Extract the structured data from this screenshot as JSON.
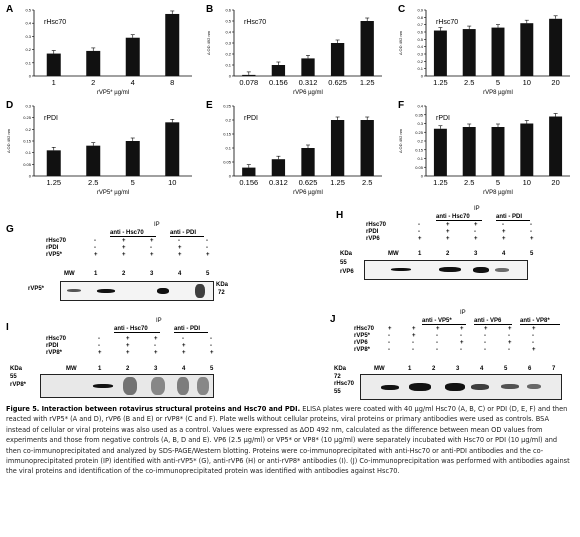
{
  "charts": [
    {
      "letter": "A",
      "title": "rHsc70",
      "categories": [
        "1",
        "2",
        "4",
        "8"
      ],
      "values": [
        0.17,
        0.19,
        0.29,
        0.47
      ],
      "ylim": [
        0,
        0.5
      ],
      "yticks": [
        0,
        0.1,
        0.2,
        0.3,
        0.4,
        0.5
      ],
      "xlabel": "rVP5* µg/ml",
      "ylabel": "",
      "bar": "#111111"
    },
    {
      "letter": "B",
      "title": "rHsc70",
      "categories": [
        "0.078",
        "0.156",
        "0.312",
        "0.625",
        "1.25"
      ],
      "values": [
        0.01,
        0.1,
        0.16,
        0.3,
        0.5
      ],
      "ylim": [
        0,
        0.6
      ],
      "yticks": [
        0,
        0.1,
        0.2,
        0.3,
        0.4,
        0.5,
        0.6
      ],
      "xlabel": "rVP6 µg/ml",
      "ylabel": "Δ OD 492 nm",
      "bar": "#111111"
    },
    {
      "letter": "C",
      "title": "rHsc70",
      "categories": [
        "1.25",
        "2.5",
        "5",
        "10",
        "20"
      ],
      "values": [
        0.62,
        0.64,
        0.66,
        0.72,
        0.78
      ],
      "ylim": [
        0,
        0.9
      ],
      "yticks": [
        0,
        0.1,
        0.2,
        0.3,
        0.4,
        0.5,
        0.6,
        0.7,
        0.8,
        0.9
      ],
      "xlabel": "rVP8 µg/ml",
      "ylabel": "Δ OD 492 nm",
      "bar": "#111111"
    },
    {
      "letter": "D",
      "title": "rPDI",
      "categories": [
        "1.25",
        "2.5",
        "5",
        "10"
      ],
      "values": [
        0.11,
        0.13,
        0.15,
        0.23
      ],
      "ylim": [
        0,
        0.3
      ],
      "yticks": [
        0,
        0.05,
        0.1,
        0.15,
        0.2,
        0.25,
        0.3
      ],
      "xlabel": "rVP5* µg/ml",
      "ylabel": "Δ OD 492 nm",
      "bar": "#111111"
    },
    {
      "letter": "E",
      "title": "rPDI",
      "categories": [
        "0.156",
        "0.312",
        "0.625",
        "1.25",
        "2.5"
      ],
      "values": [
        0.03,
        0.06,
        0.1,
        0.2,
        0.2
      ],
      "ylim": [
        0,
        0.25
      ],
      "yticks": [
        0,
        0.05,
        0.1,
        0.15,
        0.2,
        0.25
      ],
      "xlabel": "rVP6 µg/ml",
      "ylabel": "",
      "bar": "#111111"
    },
    {
      "letter": "F",
      "title": "rPDI",
      "categories": [
        "1.25",
        "2.5",
        "5",
        "10",
        "20"
      ],
      "values": [
        0.27,
        0.28,
        0.28,
        0.3,
        0.34
      ],
      "ylim": [
        0,
        0.4
      ],
      "yticks": [
        0,
        0.05,
        0.1,
        0.15,
        0.2,
        0.25,
        0.3,
        0.35,
        0.4
      ],
      "xlabel": "rVP8 µg/ml",
      "ylabel": "Δ OD 492 nm",
      "bar": "#111111"
    }
  ],
  "blots": {
    "G": {
      "letter": "G",
      "ip": "IP",
      "anti_hsc": "anti - Hsc70",
      "anti_pdi": "anti - PDI",
      "rows": [
        {
          "label": "rHsc70",
          "vals": [
            "-",
            "+",
            "+",
            "-",
            "-"
          ]
        },
        {
          "label": "rPDI",
          "vals": [
            "-",
            "+",
            "-",
            "+",
            "-"
          ]
        },
        {
          "label": "rVP5*",
          "vals": [
            "+",
            "+",
            "+",
            "+",
            "+"
          ]
        }
      ],
      "mw": "MW",
      "lanes": [
        "1",
        "2",
        "3",
        "4",
        "5"
      ],
      "band_label": "rVP5*",
      "kda": "KDa",
      "kda_val": "72"
    },
    "H": {
      "letter": "H",
      "ip": "IP",
      "anti_hsc": "anti - Hsc70",
      "anti_pdi": "anti - PDI",
      "rows": [
        {
          "label": "rHsc70",
          "vals": [
            "-",
            "+",
            "+",
            "-",
            "-"
          ]
        },
        {
          "label": "rPDI",
          "vals": [
            "-",
            "+",
            "-",
            "+",
            "-"
          ]
        },
        {
          "label": "rVP6",
          "vals": [
            "+",
            "+",
            "+",
            "+",
            "+"
          ]
        }
      ],
      "mw": "MW",
      "lanes": [
        "1",
        "2",
        "3",
        "4",
        "5"
      ],
      "band_label": "rVP6",
      "kda": "KDa",
      "kda_val": "55"
    },
    "I": {
      "letter": "I",
      "ip": "IP",
      "anti_hsc": "anti - Hsc70",
      "anti_pdi": "anti - PDI",
      "rows": [
        {
          "label": "rHsc70",
          "vals": [
            "-",
            "+",
            "+",
            "-",
            "-"
          ]
        },
        {
          "label": "rPDI",
          "vals": [
            "-",
            "+",
            "-",
            "+",
            "-"
          ]
        },
        {
          "label": "rVP8*",
          "vals": [
            "+",
            "+",
            "+",
            "+",
            "+"
          ]
        }
      ],
      "mw": "MW",
      "lanes": [
        "1",
        "2",
        "3",
        "4",
        "5"
      ],
      "band_label": "rVP8*",
      "kda": "KDa",
      "kda_val": "55"
    },
    "J": {
      "letter": "J",
      "ip": "IP",
      "anti_vp5": "anti - VP5*",
      "anti_vp6": "anti - VP6",
      "anti_vp8": "anti - VP8*",
      "rows": [
        {
          "label": "rHsc70",
          "vals": [
            "+",
            "+",
            "+",
            "+",
            "+",
            "+",
            "+"
          ]
        },
        {
          "label": "rVP5*",
          "vals": [
            "-",
            "+",
            "-",
            "-",
            "-",
            "-",
            "-"
          ]
        },
        {
          "label": "rVP6",
          "vals": [
            "-",
            "-",
            "-",
            "+",
            "-",
            "+",
            "-"
          ]
        },
        {
          "label": "rVP8*",
          "vals": [
            "-",
            "-",
            "-",
            "-",
            "-",
            "-",
            "+"
          ]
        }
      ],
      "mw": "MW",
      "lanes": [
        "1",
        "2",
        "3",
        "4",
        "5",
        "6",
        "7"
      ],
      "band_label": "rHsc70",
      "kda": "KDa",
      "kda_val1": "72",
      "kda_val2": "55"
    }
  },
  "caption": {
    "title": "Figure 5. Interaction between rotavirus structural proteins and Hsc70 and PDI.",
    "body": "ELISA plates were coated with 40 µg/ml Hsc70 (A, B, C) or PDI (D, E, F) and then reacted with rVP5* (A and D), rVP6 (B and E) or rVP8* (C and F). Plate wells without cellular proteins, viral proteins or primary antibodies were used as controls. BSA instead of cellular or viral proteins was also used as a control. Values were expressed as ΔOD 492 nm, calculated as the difference between mean OD values from experiments and those from negative controls (A, B, D and E). VP6 (2.5 µg/ml) or VP5* or VP8* (10 µg/ml) were separately incubated with Hsc70 or PDI (10 µg/ml) and then co-immunoprecipitated and analyzed by SDS-PAGE/Western blotting. Proteins were co-immunoprecipitated with anti-Hsc70 or anti-PDI antibodies and the co-immunoprecipitated protein (IP) identified with anti-rVP5* (G), anti-rVP6 (H) or anti-rVP8* antibodies (I). (J) Co-immunoprecipitation was performed with antibodies against the viral proteins and identification of the co-immunoprecipitated protein was identified with antibodies against Hsc70."
  }
}
